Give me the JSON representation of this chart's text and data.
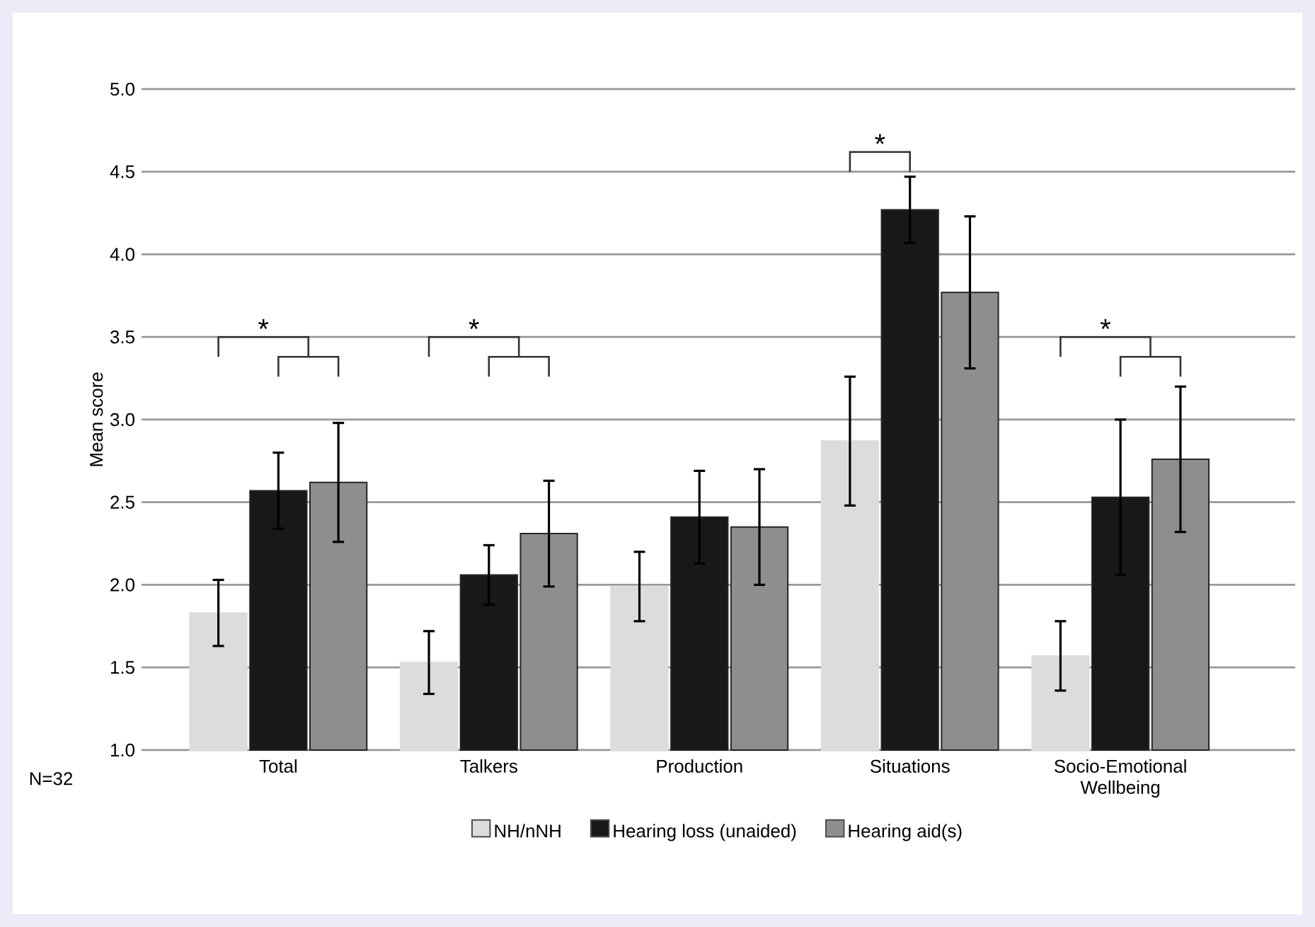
{
  "chart_data": {
    "type": "bar",
    "ylabel": "Mean score",
    "categories": [
      "Total",
      "Talkers",
      "Production",
      "Situations",
      "Socio-Emotional Wellbeing"
    ],
    "series": [
      {
        "name": "NH/nNH",
        "color": "#dcdcdc",
        "values": [
          1.83,
          1.53,
          1.99,
          2.87,
          1.57
        ],
        "errors": [
          0.2,
          0.19,
          0.21,
          0.39,
          0.21
        ]
      },
      {
        "name": "Hearing loss (unaided)",
        "color": "#1a1718",
        "values": [
          2.57,
          2.06,
          2.41,
          4.27,
          2.53
        ],
        "errors": [
          0.23,
          0.18,
          0.28,
          0.2,
          0.47
        ]
      },
      {
        "name": "Hearing aid(s)",
        "color": "#8e8e90",
        "values": [
          2.62,
          2.31,
          2.35,
          3.77,
          2.76
        ],
        "errors": [
          0.36,
          0.32,
          0.35,
          0.46,
          0.44
        ]
      }
    ],
    "ylim": [
      1,
      5
    ],
    "yticks": [
      {
        "value": 1,
        "label": "1.0"
      },
      {
        "value": 1.5,
        "label": "1.5"
      },
      {
        "value": 2,
        "label": "2.0"
      },
      {
        "value": 2.5,
        "label": "2.5"
      },
      {
        "value": 3,
        "label": "3.0"
      },
      {
        "value": 3.5,
        "label": "3.5"
      },
      {
        "value": 4,
        "label": "4.0"
      },
      {
        "value": 4.5,
        "label": "4.5"
      },
      {
        "value": 5,
        "label": "5.0"
      }
    ],
    "grid": "y",
    "legend": "bottom",
    "annotations": [
      "*",
      "*",
      "*",
      "*",
      "N=32"
    ]
  }
}
